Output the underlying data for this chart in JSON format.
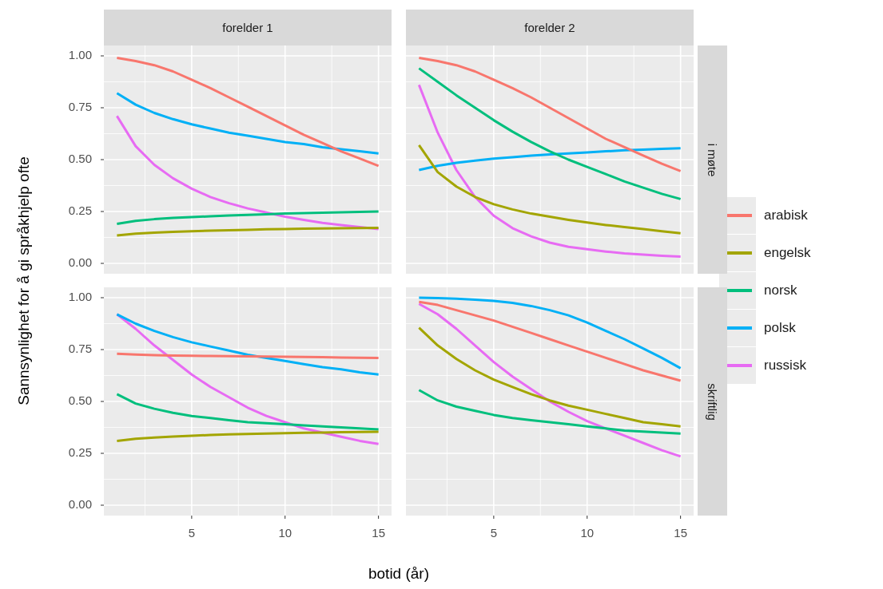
{
  "chart_data": [
    {
      "type": "line",
      "title": "forelder 1",
      "ylabel": "Sannsynlighet for å gi språkhjelp ofte",
      "x": [
        1,
        2,
        3,
        4,
        5,
        6,
        7,
        8,
        9,
        10,
        11,
        12,
        13,
        14,
        15
      ],
      "xlim": [
        0.3,
        15.7
      ],
      "ylim": [
        -0.05,
        1.05
      ],
      "xticks": [
        5,
        10,
        15
      ],
      "yticks": [
        {
          "value": 0,
          "label": "0.00"
        },
        {
          "value": 0.25,
          "label": "0.25"
        },
        {
          "value": 0.5,
          "label": "0.50"
        },
        {
          "value": 0.75,
          "label": "0.75"
        },
        {
          "value": 1,
          "label": "1.00"
        }
      ],
      "grid": true,
      "tick_labels": "y",
      "legend": "right",
      "series": [
        {
          "name": "arabisk",
          "color": "#f8766d",
          "values": [
            0.99,
            0.975,
            0.955,
            0.925,
            0.885,
            0.845,
            0.8,
            0.755,
            0.71,
            0.665,
            0.62,
            0.58,
            0.54,
            0.505,
            0.47
          ]
        },
        {
          "name": "engelsk",
          "color": "#a3a500",
          "values": [
            0.135,
            0.143,
            0.148,
            0.152,
            0.155,
            0.158,
            0.16,
            0.162,
            0.164,
            0.165,
            0.167,
            0.168,
            0.169,
            0.17,
            0.171
          ]
        },
        {
          "name": "norsk",
          "color": "#00bf7d",
          "values": [
            0.19,
            0.205,
            0.213,
            0.219,
            0.223,
            0.227,
            0.231,
            0.234,
            0.237,
            0.24,
            0.242,
            0.244,
            0.246,
            0.248,
            0.25
          ]
        },
        {
          "name": "polsk",
          "color": "#00b0f6",
          "values": [
            0.82,
            0.765,
            0.725,
            0.695,
            0.67,
            0.65,
            0.63,
            0.615,
            0.6,
            0.585,
            0.575,
            0.56,
            0.55,
            0.54,
            0.53
          ]
        },
        {
          "name": "russisk",
          "color": "#e76bf3",
          "values": [
            0.71,
            0.565,
            0.475,
            0.41,
            0.36,
            0.32,
            0.29,
            0.265,
            0.245,
            0.225,
            0.21,
            0.195,
            0.185,
            0.175,
            0.165
          ]
        }
      ]
    },
    {
      "type": "line",
      "title": "forelder 2",
      "y2label": "i møte",
      "x": [
        1,
        2,
        3,
        4,
        5,
        6,
        7,
        8,
        9,
        10,
        11,
        12,
        13,
        14,
        15
      ],
      "xlim": [
        0.3,
        15.7
      ],
      "ylim": [
        -0.05,
        1.05
      ],
      "xticks": [
        5,
        10,
        15
      ],
      "yticks": [
        0,
        0.25,
        0.5,
        0.75,
        1
      ],
      "grid": true,
      "tick_labels": false,
      "series": [
        {
          "color": "#f8766d",
          "values": [
            0.99,
            0.975,
            0.955,
            0.925,
            0.885,
            0.845,
            0.8,
            0.75,
            0.7,
            0.65,
            0.6,
            0.56,
            0.52,
            0.48,
            0.445
          ]
        },
        {
          "color": "#a3a500",
          "values": [
            0.57,
            0.44,
            0.37,
            0.32,
            0.285,
            0.26,
            0.24,
            0.225,
            0.21,
            0.197,
            0.185,
            0.175,
            0.165,
            0.155,
            0.145
          ]
        },
        {
          "color": "#00bf7d",
          "values": [
            0.94,
            0.875,
            0.81,
            0.75,
            0.69,
            0.635,
            0.585,
            0.54,
            0.5,
            0.465,
            0.43,
            0.395,
            0.365,
            0.335,
            0.31
          ]
        },
        {
          "color": "#00b0f6",
          "values": [
            0.45,
            0.47,
            0.485,
            0.495,
            0.505,
            0.512,
            0.519,
            0.525,
            0.53,
            0.535,
            0.54,
            0.545,
            0.548,
            0.552,
            0.555
          ]
        },
        {
          "color": "#e76bf3",
          "values": [
            0.86,
            0.63,
            0.45,
            0.32,
            0.23,
            0.17,
            0.13,
            0.1,
            0.08,
            0.068,
            0.057,
            0.048,
            0.042,
            0.037,
            0.033
          ]
        }
      ]
    },
    {
      "type": "line",
      "xlabel": "botid (år)",
      "x": [
        1,
        2,
        3,
        4,
        5,
        6,
        7,
        8,
        9,
        10,
        11,
        12,
        13,
        14,
        15
      ],
      "xlim": [
        0.3,
        15.7
      ],
      "ylim": [
        -0.05,
        1.05
      ],
      "xticks": [
        5,
        10,
        15
      ],
      "yticks": [
        {
          "value": 0,
          "label": "0.00"
        },
        {
          "value": 0.25,
          "label": "0.25"
        },
        {
          "value": 0.5,
          "label": "0.50"
        },
        {
          "value": 0.75,
          "label": "0.75"
        },
        {
          "value": 1,
          "label": "1.00"
        }
      ],
      "grid": true,
      "series": [
        {
          "color": "#f8766d",
          "values": [
            0.73,
            0.726,
            0.723,
            0.721,
            0.72,
            0.719,
            0.718,
            0.717,
            0.716,
            0.715,
            0.714,
            0.713,
            0.712,
            0.711,
            0.71
          ]
        },
        {
          "color": "#a3a500",
          "values": [
            0.31,
            0.32,
            0.326,
            0.331,
            0.335,
            0.338,
            0.341,
            0.343,
            0.345,
            0.347,
            0.349,
            0.35,
            0.352,
            0.353,
            0.354
          ]
        },
        {
          "color": "#00bf7d",
          "values": [
            0.535,
            0.49,
            0.465,
            0.445,
            0.43,
            0.42,
            0.41,
            0.4,
            0.395,
            0.39,
            0.385,
            0.38,
            0.375,
            0.37,
            0.365
          ]
        },
        {
          "color": "#00b0f6",
          "values": [
            0.92,
            0.875,
            0.84,
            0.81,
            0.785,
            0.765,
            0.745,
            0.725,
            0.71,
            0.695,
            0.68,
            0.665,
            0.655,
            0.64,
            0.63
          ]
        },
        {
          "color": "#e76bf3",
          "values": [
            0.92,
            0.85,
            0.77,
            0.7,
            0.63,
            0.57,
            0.52,
            0.47,
            0.43,
            0.4,
            0.37,
            0.35,
            0.33,
            0.31,
            0.295
          ]
        }
      ]
    },
    {
      "type": "line",
      "y2label": "skriftlig",
      "x": [
        1,
        2,
        3,
        4,
        5,
        6,
        7,
        8,
        9,
        10,
        11,
        12,
        13,
        14,
        15
      ],
      "xlim": [
        0.3,
        15.7
      ],
      "ylim": [
        -0.05,
        1.05
      ],
      "xticks": [
        5,
        10,
        15
      ],
      "yticks": [
        0,
        0.25,
        0.5,
        0.75,
        1
      ],
      "grid": true,
      "tick_labels": "x",
      "series": [
        {
          "color": "#f8766d",
          "values": [
            0.98,
            0.965,
            0.94,
            0.915,
            0.89,
            0.86,
            0.83,
            0.8,
            0.77,
            0.74,
            0.71,
            0.68,
            0.65,
            0.625,
            0.6
          ]
        },
        {
          "color": "#a3a500",
          "values": [
            0.855,
            0.77,
            0.705,
            0.65,
            0.605,
            0.57,
            0.535,
            0.505,
            0.48,
            0.46,
            0.44,
            0.42,
            0.4,
            0.39,
            0.38
          ]
        },
        {
          "color": "#00bf7d",
          "values": [
            0.555,
            0.505,
            0.475,
            0.455,
            0.435,
            0.42,
            0.41,
            0.4,
            0.39,
            0.38,
            0.37,
            0.36,
            0.355,
            0.35,
            0.345
          ]
        },
        {
          "color": "#00b0f6",
          "values": [
            1.0,
            0.998,
            0.995,
            0.99,
            0.985,
            0.975,
            0.96,
            0.94,
            0.915,
            0.88,
            0.84,
            0.8,
            0.755,
            0.71,
            0.66
          ]
        },
        {
          "color": "#e76bf3",
          "values": [
            0.97,
            0.92,
            0.85,
            0.77,
            0.69,
            0.62,
            0.56,
            0.5,
            0.45,
            0.405,
            0.37,
            0.335,
            0.3,
            0.265,
            0.235
          ]
        }
      ]
    }
  ]
}
